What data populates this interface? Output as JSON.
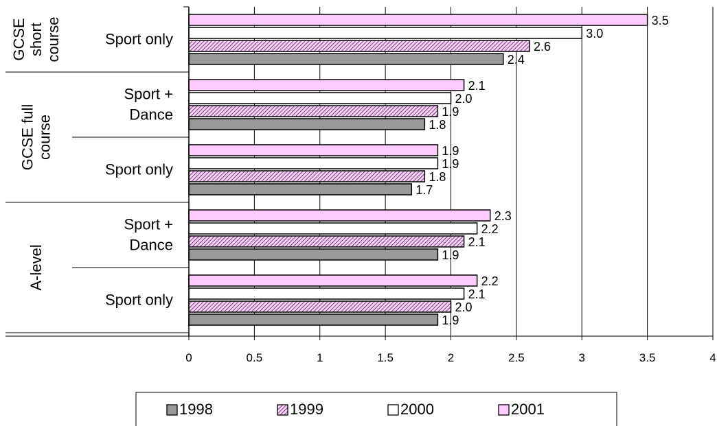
{
  "chart_data": {
    "type": "bar",
    "orientation": "horizontal",
    "groups": [
      {
        "label": "GCSE short course",
        "label_lines": [
          "GCSE",
          "short",
          "course"
        ],
        "rows": [
          {
            "label_lines": [
              "Sport only"
            ],
            "values": {
              "1998": 2.4,
              "1999": 2.6,
              "2000": 3.0,
              "2001": 3.5
            }
          }
        ]
      },
      {
        "label": "GCSE full course",
        "label_lines": [
          "GCSE full",
          "course"
        ],
        "rows": [
          {
            "label_lines": [
              "Sport +",
              "Dance"
            ],
            "values": {
              "1998": 1.8,
              "1999": 1.9,
              "2000": 2.0,
              "2001": 2.1
            }
          },
          {
            "label_lines": [
              "Sport only"
            ],
            "values": {
              "1998": 1.7,
              "1999": 1.8,
              "2000": 1.9,
              "2001": 1.9
            }
          }
        ]
      },
      {
        "label": "A-level",
        "label_lines": [
          "A-level"
        ],
        "rows": [
          {
            "label_lines": [
              "Sport +",
              "Dance"
            ],
            "values": {
              "1998": 1.9,
              "1999": 2.1,
              "2000": 2.2,
              "2001": 2.3
            }
          },
          {
            "label_lines": [
              "Sport only"
            ],
            "values": {
              "1998": 1.9,
              "1999": 2.0,
              "2000": 2.1,
              "2001": 2.2
            }
          }
        ]
      }
    ],
    "series": [
      {
        "name": "1998",
        "fill": "#999999",
        "pattern": "solid"
      },
      {
        "name": "1999",
        "fill": "#ffccff",
        "pattern": "diagonal-hatch"
      },
      {
        "name": "2000",
        "fill": "#ffffff",
        "pattern": "solid"
      },
      {
        "name": "2001",
        "fill": "#ffccff",
        "pattern": "solid"
      }
    ],
    "xlim": [
      0,
      4
    ],
    "x_ticks": [
      "0",
      "0.5",
      "1",
      "1.5",
      "2",
      "2.5",
      "3",
      "3.5",
      "4"
    ],
    "value_format": "0.0",
    "grid": "vertical",
    "legend": {
      "position": "bottom",
      "entries": [
        "1998",
        "1999",
        "2000",
        "2001"
      ]
    }
  }
}
